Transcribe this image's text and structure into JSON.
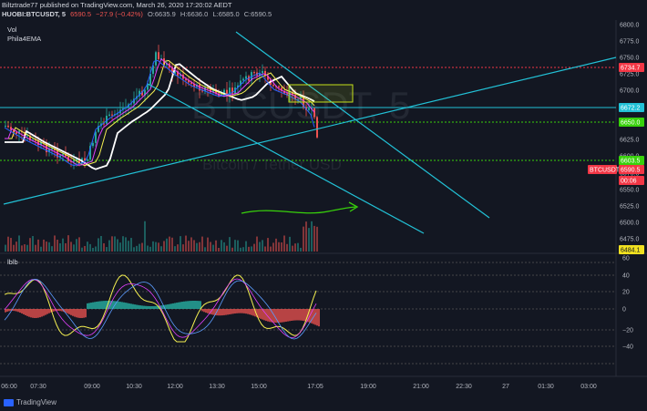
{
  "header": {
    "publisher_line": "Biltztrade77 published on TradingView.com, March 26, 2020 17:20:02 AEDT",
    "symbol": "HUOBI:BTCUSDT, 5",
    "last": "6590.5",
    "change": "−27.9 (−0.42%)",
    "open": "O:6635.9",
    "high": "H:6636.0",
    "low": "L:6585.0",
    "close": "C:6590.5"
  },
  "indicators": {
    "vol": "Vol",
    "ema": "Phila4EMA",
    "osc": "lblb"
  },
  "watermark": {
    "symbol": "BTCUSDT, 5",
    "name": "Bitcoin / Tether USD"
  },
  "price_axis": {
    "ticks": [
      "6800.0",
      "6775.0",
      "6750.0",
      "6725.0",
      "6700.0",
      "6675.0",
      "6650.0",
      "6625.0",
      "6600.0",
      "6575.0",
      "6550.0",
      "6525.0",
      "6500.0",
      "6475.0"
    ],
    "labels": [
      {
        "text": "6734.7",
        "color": "#f23645"
      },
      {
        "text": "6672.2",
        "color": "#22c1d6"
      },
      {
        "text": "6650.0",
        "color": "#38d10b"
      },
      {
        "text": "6603.5",
        "color": "#38d10b"
      },
      {
        "text": "BTCUSDT",
        "color": "#f23645"
      },
      {
        "text": "6590.5",
        "color": "#f23645"
      },
      {
        "text": "00:06",
        "color": "#f23645"
      },
      {
        "text": "6484.1",
        "color": "#f0e020"
      }
    ]
  },
  "osc_axis": {
    "ticks": [
      "60",
      "40",
      "20",
      "0",
      "−20",
      "−40"
    ]
  },
  "time_axis": {
    "ticks": [
      "06:00",
      "07:30",
      "09:00",
      "10:30",
      "12:00",
      "13:30",
      "15:00",
      "17:05",
      "19:00",
      "21:00",
      "22:30",
      "27",
      "01:30",
      "03:00"
    ]
  },
  "footer": {
    "brand": "TradingView"
  },
  "colors": {
    "background": "#131722",
    "up": "#26a69a",
    "down": "#ef5350",
    "trendline": "#22c1d6",
    "support": "#38d10b",
    "resistance": "#f23645",
    "box": "#c6e21a",
    "osc_yellow": "#f5f051",
    "osc_green": "#26a69a",
    "osc_red": "#ef5350"
  }
}
